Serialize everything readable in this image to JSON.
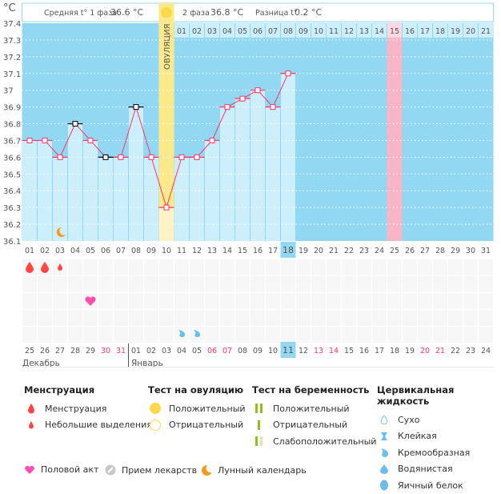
{
  "chart_data": {
    "type": "line",
    "unit_label": "°C",
    "y_ticks": [
      "37.4",
      "37.3",
      "37.2",
      "37.1",
      "37",
      "36.9",
      "36.8",
      "36.7",
      "36.6",
      "36.5",
      "36.4",
      "36.3",
      "36.2",
      "36.1"
    ],
    "ylim": [
      36.1,
      37.4
    ],
    "grid": true,
    "cycle_days": [
      "01",
      "02",
      "03",
      "04",
      "05",
      "06",
      "07",
      "08",
      "09",
      "10",
      "11",
      "12",
      "13",
      "14",
      "15",
      "16",
      "17",
      "18",
      "19",
      "20",
      "21",
      "22",
      "23",
      "24",
      "25",
      "26",
      "27",
      "28",
      "29",
      "30",
      "31"
    ],
    "temperatures": [
      36.7,
      36.7,
      36.6,
      36.8,
      36.7,
      36.6,
      36.6,
      36.9,
      36.6,
      36.3,
      36.6,
      36.6,
      36.7,
      36.9,
      36.95,
      37.0,
      36.9,
      37.1
    ],
    "black_marker_days": [
      4,
      6,
      8
    ],
    "current_day": "18",
    "ovulation_day": 10,
    "ovulation_label": "ОВУЛЯЦИЯ",
    "post_ovulation_days": [
      "01",
      "02",
      "03",
      "04",
      "05",
      "06",
      "07",
      "08",
      "09",
      "10",
      "11",
      "12",
      "13",
      "14",
      "15",
      "16",
      "17",
      "18",
      "19",
      "20",
      "21"
    ],
    "highlight_post_day": "15",
    "calendar_dates": [
      "25",
      "26",
      "27",
      "28",
      "29",
      "30",
      "31",
      "01",
      "02",
      "03",
      "04",
      "05",
      "06",
      "07",
      "08",
      "09",
      "10",
      "11",
      "12",
      "13",
      "14",
      "15",
      "16",
      "17",
      "18",
      "19",
      "20",
      "21",
      "22",
      "23",
      "24"
    ],
    "weekend_indexes": [
      5,
      6,
      12,
      13,
      19,
      20,
      26,
      27
    ],
    "today_date": "11",
    "months": [
      "Декабрь",
      "Январь"
    ],
    "phase1_label": "Средняя t° 1 фаза",
    "phase1_value": "36.6 °C",
    "phase2_label": "2 фаза",
    "phase2_value": "36.8 °C",
    "diff_label": "Разница t°",
    "diff_value": "0.2 °C",
    "events": [
      {
        "day": 1,
        "row": 0,
        "type": "menstruation"
      },
      {
        "day": 2,
        "row": 0,
        "type": "menstruation"
      },
      {
        "day": 3,
        "row": 0,
        "type": "spotting"
      },
      {
        "day": 5,
        "row": 2,
        "type": "intercourse"
      },
      {
        "day": 11,
        "row": 4,
        "type": "creamy"
      },
      {
        "day": 12,
        "row": 4,
        "type": "creamy"
      }
    ],
    "moon_day": 3
  },
  "colors": {
    "plot_bg": "#93d8f2",
    "bar": "#cdeefb",
    "line": "#ff3366",
    "ovulation": "#fbe98c",
    "pink": "#f9b5c8",
    "weekend": "#ff3366"
  },
  "legend": {
    "menstruation": {
      "title": "Менструация",
      "items": [
        "Менструация",
        "Небольшие выделения"
      ]
    },
    "ovulation_test": {
      "title": "Тест на овуляцию",
      "items": [
        "Положительный",
        "Отрицательный"
      ]
    },
    "pregnancy_test": {
      "title": "Тест на беременность",
      "items": [
        "Положительный",
        "Отрицательный",
        "Слабоположительный"
      ]
    },
    "cervical": {
      "title": "Цервикальная жидкость",
      "items": [
        "Сухо",
        "Клейкая",
        "Кремообразная",
        "Водянистая",
        "Яичный белок"
      ]
    },
    "other": [
      "Половой акт",
      "Прием лекарств",
      "Лунный календарь"
    ]
  }
}
